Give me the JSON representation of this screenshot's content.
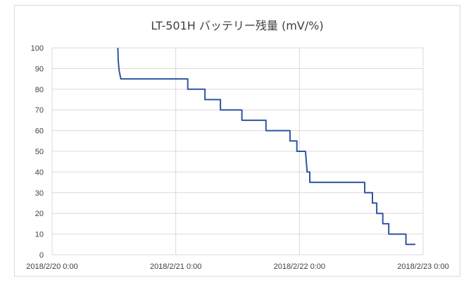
{
  "chart_data": {
    "type": "line",
    "title": "LT-501H バッテリー残量 (mV/%)",
    "xlabel": "",
    "ylabel": "",
    "ylim": [
      0,
      100
    ],
    "y_ticks": [
      0,
      10,
      20,
      30,
      40,
      50,
      60,
      70,
      80,
      90,
      100
    ],
    "xlim": [
      "2018/2/20 0:00",
      "2018/2/23 0:00"
    ],
    "x_ticks": [
      "2018/2/20 0:00",
      "2018/2/21 0:00",
      "2018/2/22 0:00",
      "2018/2/23 0:00"
    ],
    "grid": true,
    "legend": "none",
    "series": [
      {
        "color": "#2f55a4",
        "points": [
          [
            "2018/2/20 12:46",
            100
          ],
          [
            "2018/2/20 12:50",
            94
          ],
          [
            "2018/2/20 13:00",
            89
          ],
          [
            "2018/2/20 13:20",
            85
          ],
          [
            "2018/2/21 2:20",
            85
          ],
          [
            "2018/2/21 2:20",
            80
          ],
          [
            "2018/2/21 5:40",
            80
          ],
          [
            "2018/2/21 5:40",
            75
          ],
          [
            "2018/2/21 8:40",
            75
          ],
          [
            "2018/2/21 8:40",
            70
          ],
          [
            "2018/2/21 12:50",
            70
          ],
          [
            "2018/2/21 12:50",
            65
          ],
          [
            "2018/2/21 17:30",
            65
          ],
          [
            "2018/2/21 17:30",
            60
          ],
          [
            "2018/2/21 22:10",
            60
          ],
          [
            "2018/2/21 22:10",
            55
          ],
          [
            "2018/2/21 23:30",
            55
          ],
          [
            "2018/2/21 23:30",
            50
          ],
          [
            "2018/2/22 1:10",
            50
          ],
          [
            "2018/2/22 1:30",
            40
          ],
          [
            "2018/2/22 2:00",
            40
          ],
          [
            "2018/2/22 2:00",
            35
          ],
          [
            "2018/2/22 12:40",
            35
          ],
          [
            "2018/2/22 12:40",
            30
          ],
          [
            "2018/2/22 14:10",
            30
          ],
          [
            "2018/2/22 14:10",
            25
          ],
          [
            "2018/2/22 15:00",
            25
          ],
          [
            "2018/2/22 15:00",
            20
          ],
          [
            "2018/2/22 16:10",
            20
          ],
          [
            "2018/2/22 16:10",
            15
          ],
          [
            "2018/2/22 17:20",
            15
          ],
          [
            "2018/2/22 17:20",
            10
          ],
          [
            "2018/2/22 20:40",
            10
          ],
          [
            "2018/2/22 20:40",
            5
          ],
          [
            "2018/2/22 22:30",
            5
          ]
        ]
      }
    ]
  }
}
